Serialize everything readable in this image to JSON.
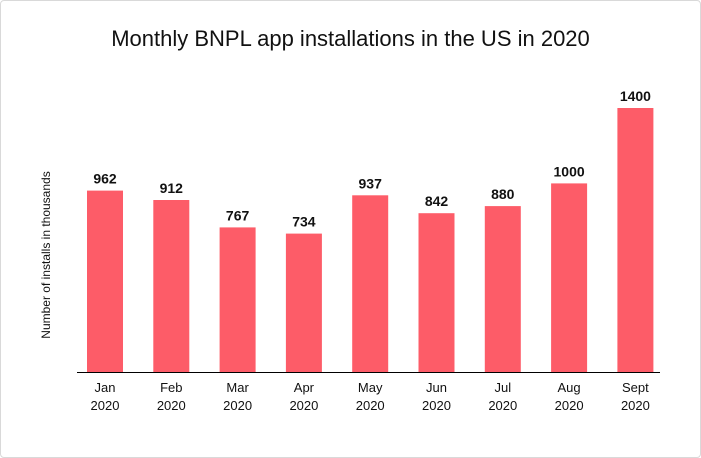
{
  "chart_data": {
    "type": "bar",
    "title": "Monthly BNPL app installations in the US in 2020",
    "xlabel": "",
    "ylabel": "Number of installs in thousands",
    "categories": [
      [
        "Jan",
        "2020"
      ],
      [
        "Feb",
        "2020"
      ],
      [
        "Mar",
        "2020"
      ],
      [
        "Apr",
        "2020"
      ],
      [
        "May",
        "2020"
      ],
      [
        "Jun",
        "2020"
      ],
      [
        "Jul",
        "2020"
      ],
      [
        "Aug",
        "2020"
      ],
      [
        "Sept",
        "2020"
      ]
    ],
    "values": [
      962,
      912,
      767,
      734,
      937,
      842,
      880,
      1000,
      1400
    ],
    "ylim": [
      0,
      1400
    ],
    "bar_color": "#fd5c68",
    "axis_color": "#000000",
    "grid": false
  }
}
